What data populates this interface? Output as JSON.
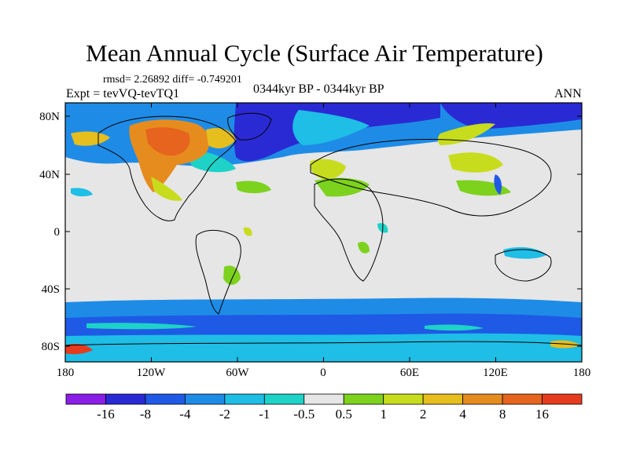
{
  "title": "Mean Annual Cycle (Surface Air Temperature)",
  "stats": "rmsd= 2.26892 diff= -0.749201",
  "experiment": "Expt = tevVQ-tevTQ1",
  "period": "0344kyr BP - 0344kyr BP",
  "season": "ANN",
  "lat_labels": [
    "80N",
    "40N",
    "0",
    "40S",
    "80S"
  ],
  "lon_labels": [
    "180",
    "120W",
    "60W",
    "0",
    "60E",
    "120E",
    "180"
  ],
  "colorbar": {
    "labels": [
      "-16",
      "-8",
      "-4",
      "-2",
      "-1",
      "-0.5",
      "0.5",
      "1",
      "2",
      "4",
      "8",
      "16"
    ],
    "colors": [
      "#8b1ee6",
      "#2a2ad4",
      "#1e5ae6",
      "#1e8ce6",
      "#1ebee6",
      "#1ed2c8",
      "#e6e6e6",
      "#7dd21e",
      "#c8dc1e",
      "#e6be1e",
      "#e68c1e",
      "#e6641e",
      "#e63c1e"
    ]
  },
  "map_colors": {
    "background": "#e6e6e6",
    "coast": "#000000"
  }
}
